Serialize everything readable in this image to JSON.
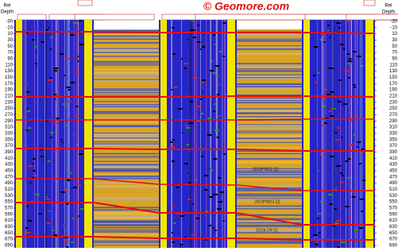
{
  "header": {
    "watermark": "© Geomore.com"
  },
  "depth_axes": [
    {
      "title_line1": "Rel",
      "title_line2": "Depth"
    },
    {
      "title_line1": "Rel",
      "title_line2": "Depth"
    }
  ],
  "depth_ticks": [
    -30,
    -10,
    10,
    30,
    50,
    70,
    90,
    110,
    130,
    150,
    170,
    190,
    210,
    230,
    250,
    270,
    290,
    310,
    330,
    350,
    370,
    390,
    410,
    430,
    450,
    470,
    490,
    510,
    530,
    550,
    570,
    590,
    610,
    630,
    650,
    670,
    690
  ],
  "markers": [
    "2013PMO2 [1]",
    "2013PMO3 [2]",
    "2013LO9 [1]"
  ]
}
